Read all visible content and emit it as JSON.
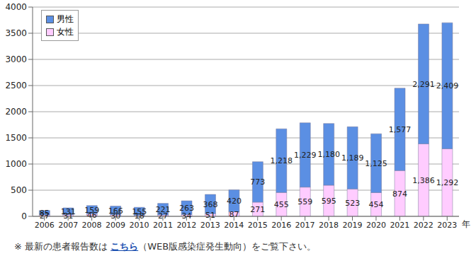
{
  "chart_data": {
    "type": "bar",
    "stacked": true,
    "grid": true,
    "data_labels": true,
    "legend": "upper left",
    "x_label": "年",
    "categories": [
      "2006",
      "2007",
      "2008",
      "2009",
      "2010",
      "2011",
      "2012",
      "2013",
      "2014",
      "2015",
      "2016",
      "2017",
      "2018",
      "2019",
      "2020",
      "2021",
      "2022",
      "2023"
    ],
    "ylim": [
      0,
      4000
    ],
    "yticks": [
      0,
      500,
      1000,
      1500,
      2000,
      2500,
      3000,
      3500,
      4000
    ],
    "series": [
      {
        "name": "男性",
        "color": "#5b8fe3",
        "values": [
          85,
          131,
          159,
          166,
          155,
          221,
          263,
          368,
          420,
          773,
          1218,
          1229,
          1180,
          1189,
          1125,
          1577,
          2291,
          2409
        ],
        "value_labels": [
          "85",
          "131",
          "159",
          "166",
          "155",
          "221",
          "263",
          "368",
          "420",
          "773",
          "1,218",
          "1,229",
          "1,180",
          "1,189",
          "1,125",
          "1,577",
          "2,291",
          "2,409"
        ]
      },
      {
        "name": "女性",
        "color": "#ffccff",
        "values": [
          27,
          31,
          46,
          30,
          18,
          27,
          34,
          51,
          87,
          271,
          455,
          559,
          595,
          523,
          454,
          874,
          1386,
          1292
        ],
        "value_labels": [
          "27",
          "31",
          "46",
          "30",
          "18",
          "27",
          "34",
          "51",
          "87",
          "271",
          "455",
          "559",
          "595",
          "523",
          "454",
          "874",
          "1,386",
          "1,292"
        ]
      }
    ],
    "note": {
      "before": "※ 最新の患者報告数は ",
      "link": "こちら",
      "after": "（WEB版感染症発生動向）をご覧下さい。"
    }
  }
}
